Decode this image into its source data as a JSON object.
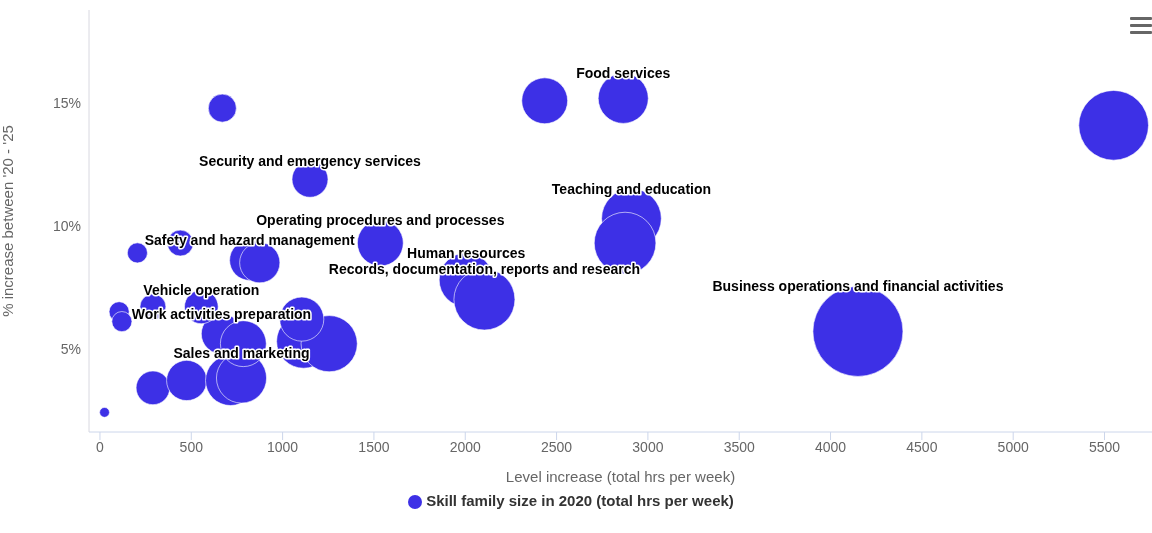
{
  "chart_data": {
    "type": "bubble",
    "xlabel": "Level increase (total hrs per week)",
    "ylabel": "% increase between '20 - '25",
    "x": [
      25,
      290,
      475,
      715,
      775,
      665,
      785,
      1115,
      1255,
      1105,
      555,
      290,
      105,
      120,
      205,
      440,
      820,
      875,
      1535,
      1150,
      670,
      2435,
      2865,
      5550,
      2910,
      2875,
      2005,
      2105,
      4150
    ],
    "series": [
      {
        "name": "Skill family size in 2020 (total hrs per week)",
        "color": "#3d30e6",
        "values": [
          2.4,
          3.4,
          3.7,
          3.7,
          3.8,
          5.6,
          5.2,
          5.3,
          5.2,
          6.2,
          6.7,
          6.7,
          6.5,
          6.1,
          8.9,
          9.3,
          8.6,
          8.5,
          9.3,
          11.9,
          14.8,
          15.1,
          15.2,
          14.1,
          10.3,
          9.3,
          7.8,
          7.0,
          5.7
        ],
        "sizes": [
          0.012,
          0.14,
          0.2,
          0.31,
          0.31,
          0.2,
          0.26,
          0.36,
          0.39,
          0.24,
          0.14,
          0.083,
          0.05,
          0.05,
          0.05,
          0.083,
          0.2,
          0.2,
          0.26,
          0.16,
          0.097,
          0.26,
          0.31,
          0.6,
          0.44,
          0.47,
          0.36,
          0.46,
          1
        ]
      }
    ],
    "xlim": [
      -60,
      5760
    ],
    "xticks": [
      0,
      500,
      1000,
      1500,
      2000,
      2500,
      3000,
      3500,
      4000,
      4500,
      5000,
      5500
    ],
    "ylim": [
      1.6,
      18.8
    ],
    "yticks": [
      {
        "value": 5,
        "label": "5%"
      },
      {
        "value": 10,
        "label": "10%"
      },
      {
        "value": 15,
        "label": "15%"
      }
    ],
    "legend": "bottom",
    "annotations": [
      {
        "text": "Food services",
        "x": 2865,
        "y": 15.2
      },
      {
        "text": "Security and emergency services",
        "x": 1150,
        "y": 11.9
      },
      {
        "text": "Teaching and education",
        "x": 2910,
        "y": 10.3
      },
      {
        "text": "Operating procedures and processes",
        "x": 1535,
        "y": 9.3
      },
      {
        "text": "Safety and hazard management",
        "x": 820,
        "y": 8.6
      },
      {
        "text": "Human resources",
        "x": 2005,
        "y": 7.8
      },
      {
        "text": "Records, documentation, reports and research",
        "x": 2105,
        "y": 7.0
      },
      {
        "text": "Business operations and financial activities",
        "x": 4150,
        "y": 5.7
      },
      {
        "text": "Vehicle operation",
        "x": 555,
        "y": 6.7
      },
      {
        "text": "Work activities preparation",
        "x": 665,
        "y": 5.6
      },
      {
        "text": "Sales and marketing",
        "x": 775,
        "y": 3.8
      }
    ]
  }
}
